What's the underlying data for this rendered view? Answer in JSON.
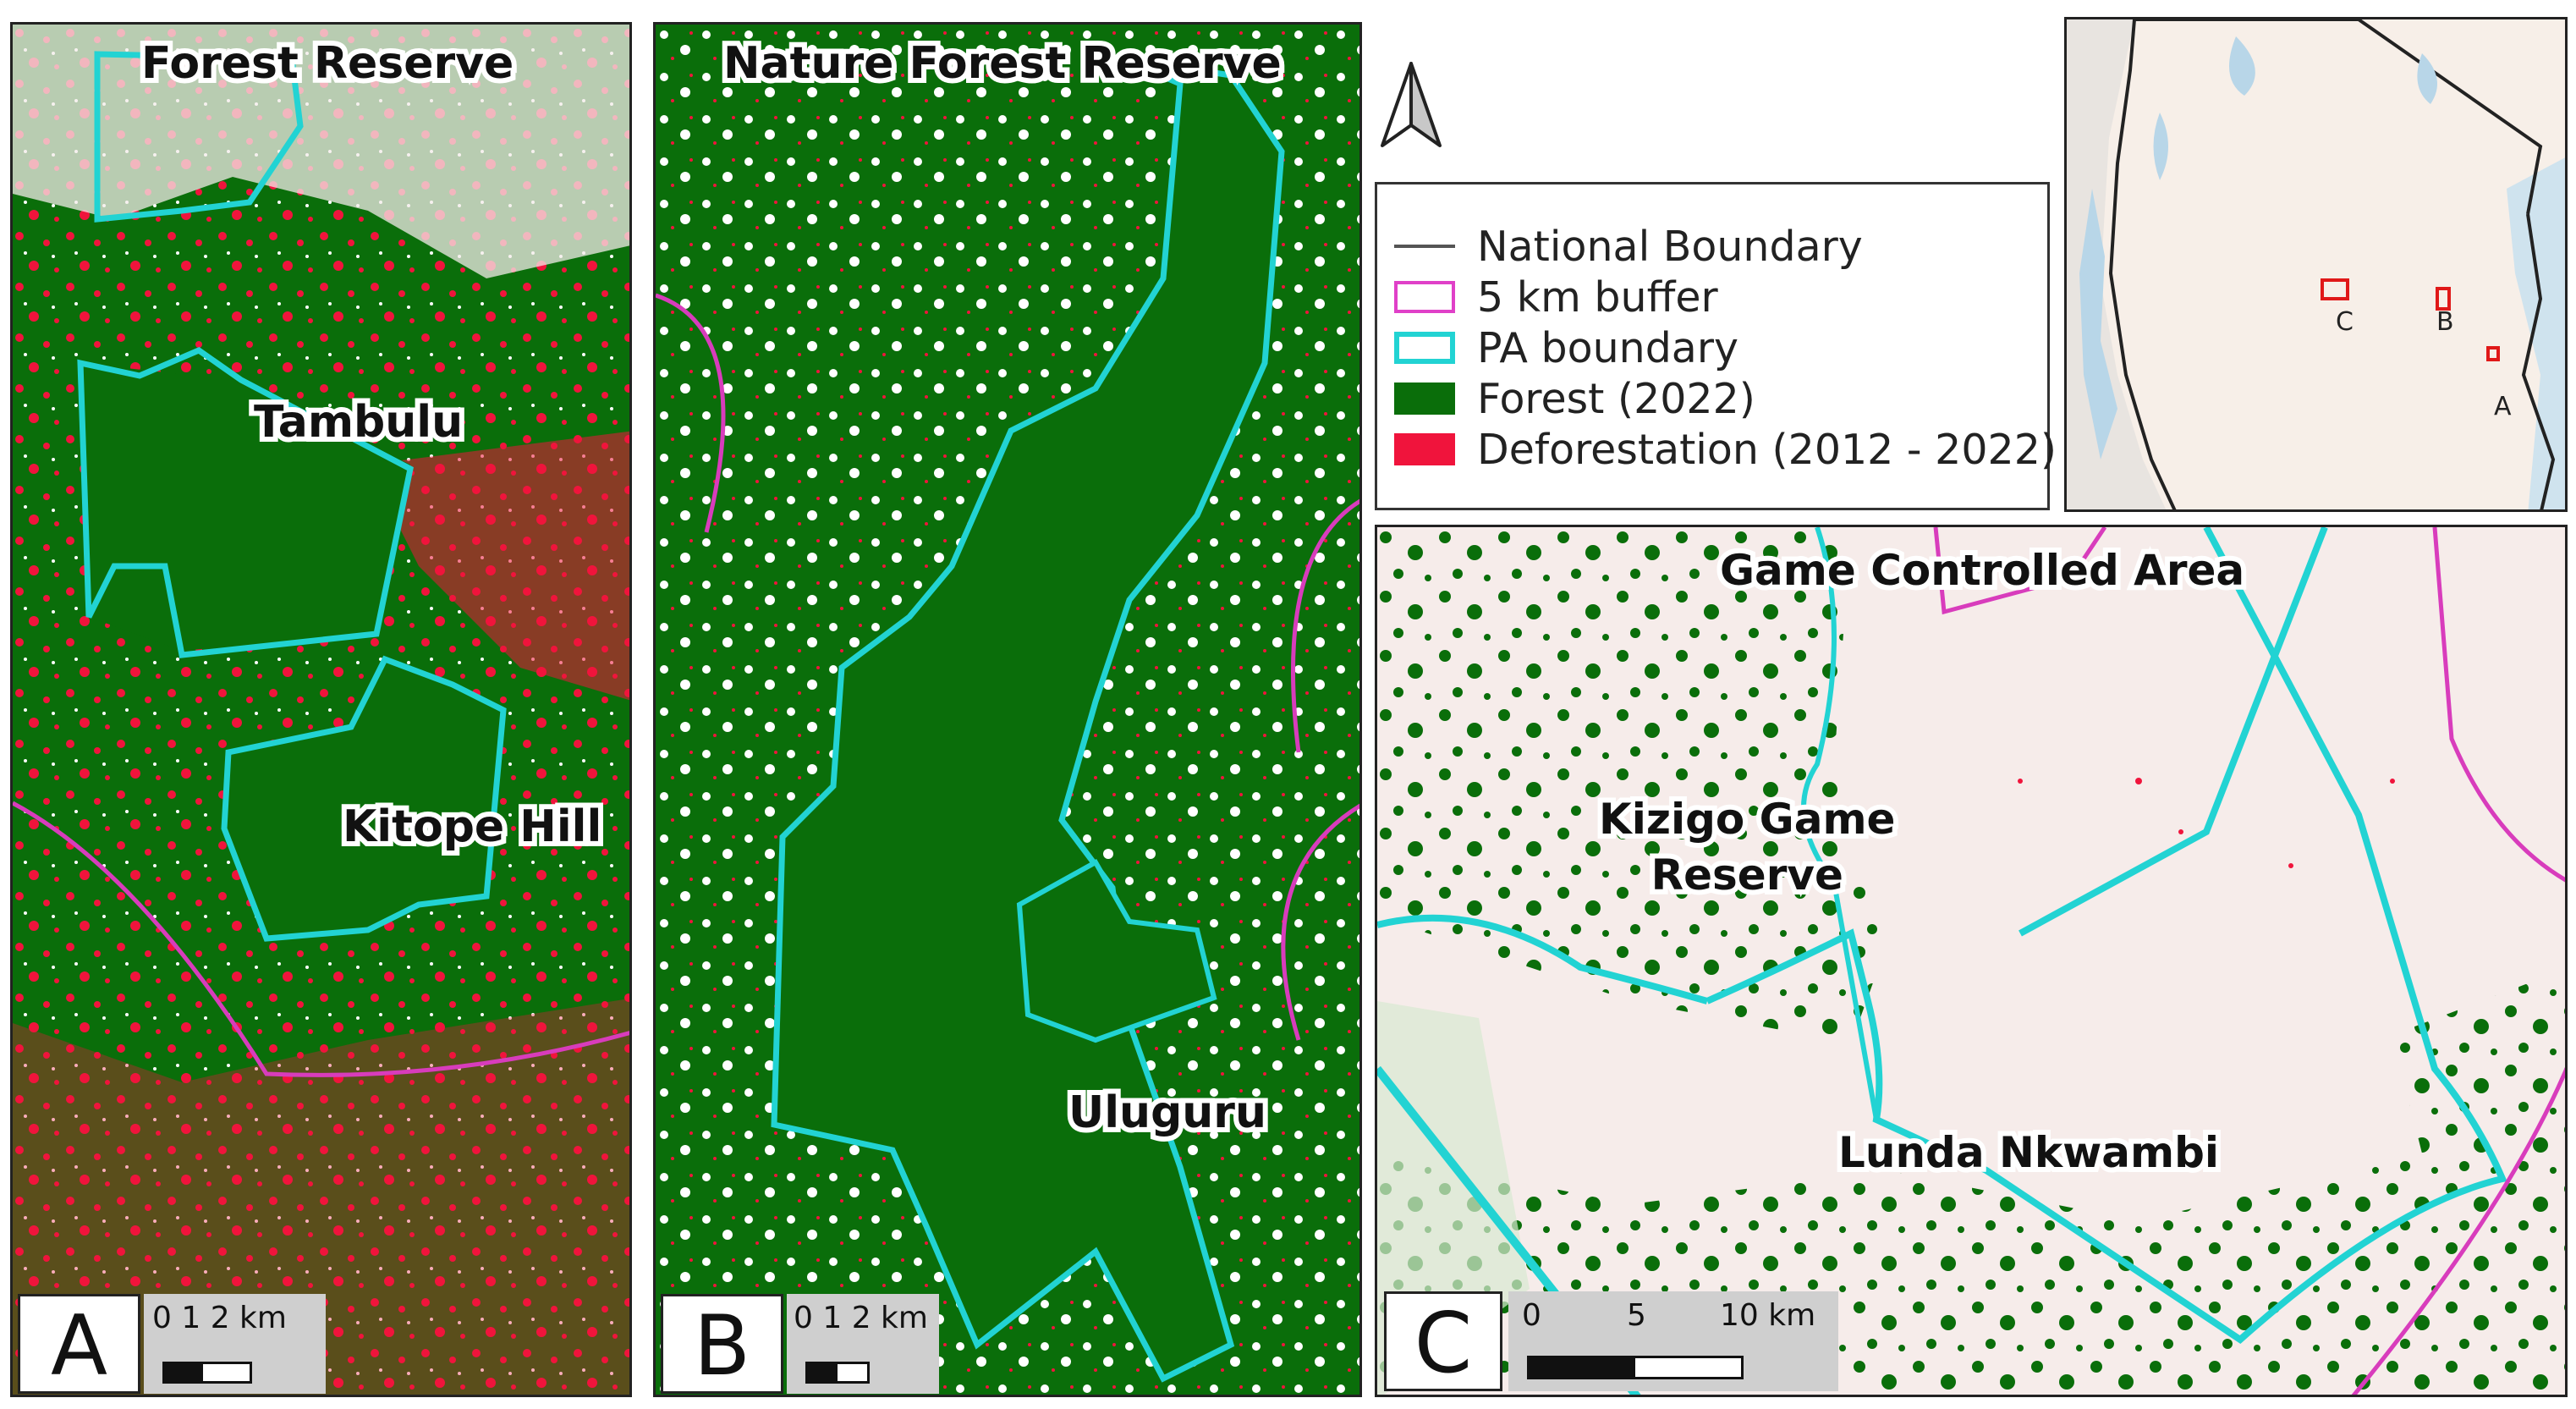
{
  "panels": {
    "a": {
      "letter": "A",
      "labels": {
        "forest_reserve": "Forest Reserve",
        "tambulu": "Tambulu",
        "kitope_hill": "Kitope Hill"
      },
      "scale": "0  1  2 km"
    },
    "b": {
      "letter": "B",
      "labels": {
        "nature_forest_reserve": "Nature Forest Reserve",
        "uluguru": "Uluguru"
      },
      "scale": "0 1 2 km"
    },
    "c": {
      "letter": "C",
      "labels": {
        "game_controlled_area": "Game Controlled Area",
        "kizigo_line1": "Kizigo Game",
        "kizigo_line2": "Reserve",
        "lunda": "Lunda Nkwambi"
      },
      "scale": {
        "t0": "0",
        "t5": "5",
        "t10": "10 km"
      }
    }
  },
  "legend": {
    "items": [
      {
        "label": "National Boundary",
        "symbol": "line",
        "color": "#555555"
      },
      {
        "label": "5 km buffer",
        "symbol": "outline",
        "color": "#e040c8"
      },
      {
        "label": "PA boundary",
        "symbol": "outline",
        "color": "#22d3d3"
      },
      {
        "label": "Forest (2022)",
        "symbol": "fill",
        "color": "#0a6e0a"
      },
      {
        "label": "Deforestation (2012 - 2022)",
        "symbol": "fill",
        "color": "#f0143c"
      }
    ]
  },
  "inset": {
    "labels": {
      "c": "C",
      "b": "B",
      "a": "A"
    }
  },
  "colors": {
    "forest": "#0a6e0a",
    "deforestation": "#f0143c",
    "pa_boundary": "#22d3d3",
    "buffer": "#e040c8",
    "background": "#f6ecea"
  },
  "icons": {
    "north_arrow": "north-arrow-icon"
  }
}
